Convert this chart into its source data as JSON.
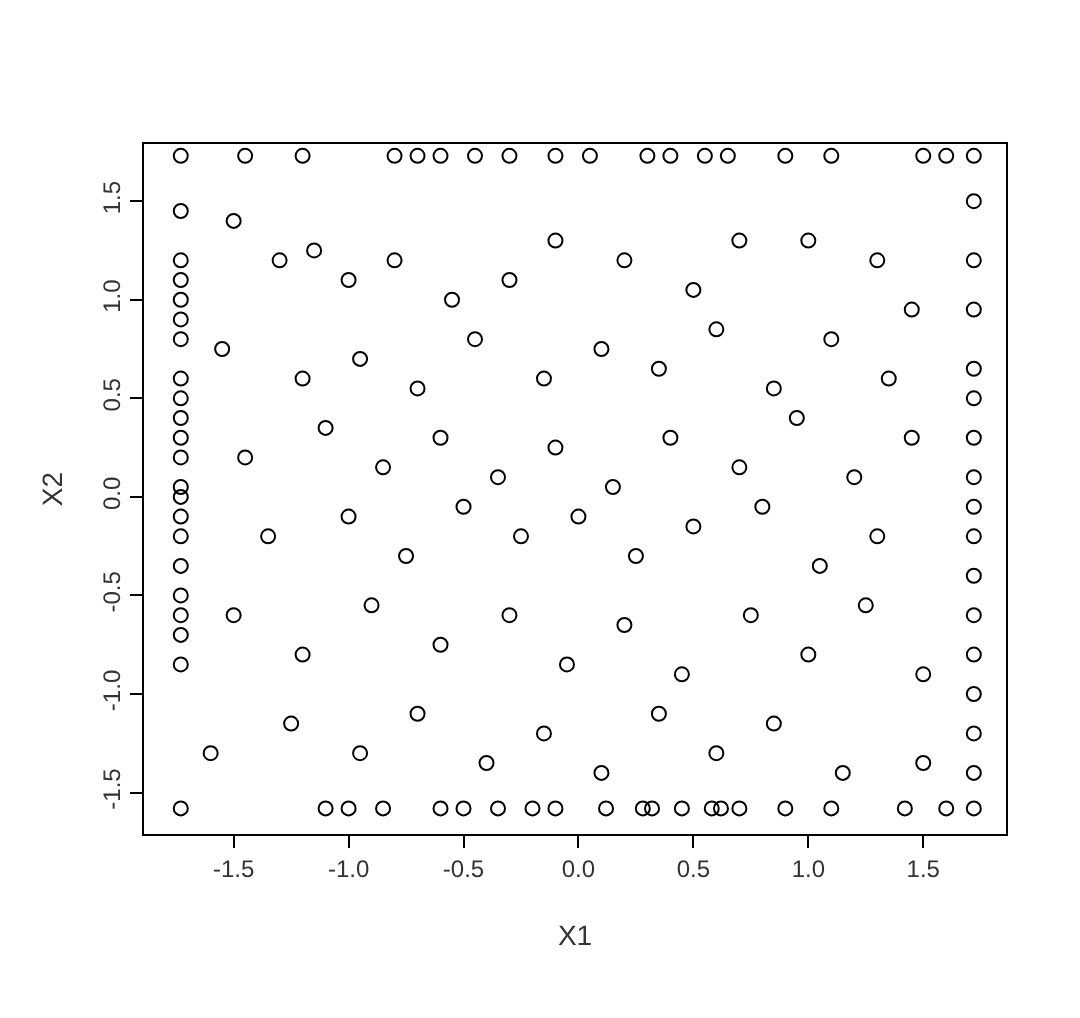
{
  "chart_data": {
    "type": "scatter",
    "xlabel": "X1",
    "ylabel": "X2",
    "marker": "circle",
    "xlim": [
      -1.89,
      1.86
    ],
    "ylim": [
      -1.71,
      1.79
    ],
    "xticks": [
      -1.5,
      {
        "value": -1,
        "label": "-1.0"
      },
      -0.5,
      {
        "value": 0,
        "label": "0.0"
      },
      0.5,
      {
        "value": 1,
        "label": "1.0"
      },
      1.5
    ],
    "yticks": [
      -1.5,
      {
        "value": -1,
        "label": "-1.0"
      },
      -0.5,
      {
        "value": 0,
        "label": "0.0"
      },
      0.5,
      {
        "value": 1,
        "label": "1.0"
      },
      1.5
    ],
    "series": [
      {
        "color": "#000000",
        "x": [
          -1.73,
          -1.73,
          -1.73,
          -1.73,
          -1.73,
          -1.73,
          -1.73,
          -1.73,
          -1.73,
          -1.73,
          -1.73,
          -1.73,
          -1.73,
          -1.73,
          -1.73,
          -1.73,
          -1.73,
          -1.73,
          -1.73,
          -1.73,
          -1.73,
          -1.73,
          1.72,
          1.72,
          1.72,
          1.72,
          1.72,
          1.72,
          1.72,
          1.72,
          1.72,
          1.72,
          1.72,
          1.72,
          1.72,
          1.72,
          1.72,
          1.72,
          1.72,
          -1.45,
          -1.2,
          -0.8,
          -0.7,
          -0.6,
          -0.45,
          -0.3,
          -0.1,
          0.05,
          0.3,
          0.4,
          0.55,
          0.65,
          0.9,
          1.1,
          1.5,
          1.6,
          -1.1,
          -1.0,
          -0.85,
          -0.6,
          -0.5,
          -0.35,
          -0.2,
          -0.1,
          0.12,
          0.28,
          0.32,
          0.45,
          0.58,
          0.62,
          0.7,
          0.9,
          1.1,
          1.42,
          1.6,
          -1.5,
          -1.3,
          -1.15,
          -1.0,
          -0.8,
          -0.55,
          -0.3,
          -0.1,
          0.2,
          0.5,
          0.7,
          1.0,
          1.3,
          1.45,
          -1.55,
          -1.2,
          -0.95,
          -0.7,
          -0.45,
          -0.15,
          0.1,
          0.35,
          0.6,
          0.85,
          1.1,
          1.35,
          -1.45,
          -1.1,
          -0.85,
          -0.6,
          -0.35,
          -0.1,
          0.15,
          0.4,
          0.7,
          0.95,
          1.2,
          1.45,
          -1.35,
          -1.0,
          -0.75,
          -0.5,
          -0.25,
          0.0,
          0.25,
          0.5,
          0.8,
          1.05,
          1.3,
          -1.5,
          -1.2,
          -0.9,
          -0.6,
          -0.3,
          -0.05,
          0.2,
          0.45,
          0.75,
          1.0,
          1.25,
          1.5,
          -1.6,
          -1.25,
          -0.95,
          -0.7,
          -0.4,
          -0.15,
          0.1,
          0.35,
          0.6,
          0.85,
          1.15,
          1.5
        ],
        "values": [
          1.73,
          1.45,
          1.2,
          1.1,
          1.0,
          0.9,
          0.8,
          0.6,
          0.5,
          0.4,
          0.3,
          0.2,
          0.05,
          0.0,
          -0.1,
          -0.2,
          -0.35,
          -0.5,
          -0.6,
          -0.7,
          -0.85,
          -1.58,
          1.73,
          1.5,
          1.2,
          0.95,
          0.65,
          0.5,
          0.3,
          0.1,
          -0.05,
          -0.2,
          -0.4,
          -0.6,
          -0.8,
          -1.0,
          -1.2,
          -1.4,
          -1.58,
          1.73,
          1.73,
          1.73,
          1.73,
          1.73,
          1.73,
          1.73,
          1.73,
          1.73,
          1.73,
          1.73,
          1.73,
          1.73,
          1.73,
          1.73,
          1.73,
          1.73,
          -1.58,
          -1.58,
          -1.58,
          -1.58,
          -1.58,
          -1.58,
          -1.58,
          -1.58,
          -1.58,
          -1.58,
          -1.58,
          -1.58,
          -1.58,
          -1.58,
          -1.58,
          -1.58,
          -1.58,
          -1.58,
          -1.58,
          1.4,
          1.2,
          1.25,
          1.1,
          1.2,
          1.0,
          1.1,
          1.3,
          1.2,
          1.05,
          1.3,
          1.3,
          1.2,
          0.95,
          0.75,
          0.6,
          0.7,
          0.55,
          0.8,
          0.6,
          0.75,
          0.65,
          0.85,
          0.55,
          0.8,
          0.6,
          0.2,
          0.35,
          0.15,
          0.3,
          0.1,
          0.25,
          0.05,
          0.3,
          0.15,
          0.4,
          0.1,
          0.3,
          -0.2,
          -0.1,
          -0.3,
          -0.05,
          -0.2,
          -0.1,
          -0.3,
          -0.15,
          -0.05,
          -0.35,
          -0.2,
          -0.6,
          -0.8,
          -0.55,
          -0.75,
          -0.6,
          -0.85,
          -0.65,
          -0.9,
          -0.6,
          -0.8,
          -0.55,
          -0.9,
          -1.3,
          -1.15,
          -1.3,
          -1.1,
          -1.35,
          -1.2,
          -1.4,
          -1.1,
          -1.3,
          -1.15,
          -1.4,
          -1.35
        ]
      }
    ]
  }
}
